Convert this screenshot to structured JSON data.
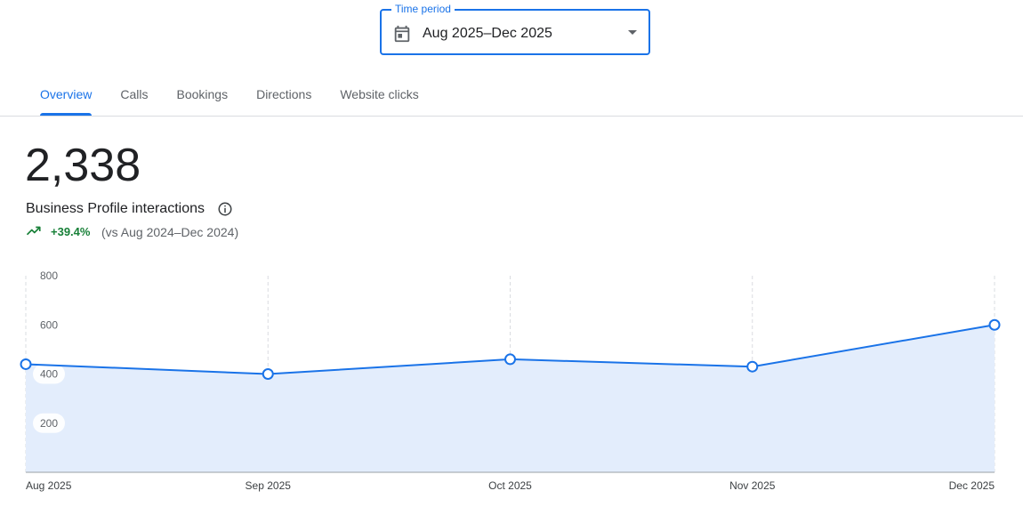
{
  "time_period": {
    "legend": "Time period",
    "value": "Aug 2025–Dec 2025",
    "icon": "calendar-icon"
  },
  "tabs": [
    {
      "label": "Overview",
      "active": true
    },
    {
      "label": "Calls",
      "active": false
    },
    {
      "label": "Bookings",
      "active": false
    },
    {
      "label": "Directions",
      "active": false
    },
    {
      "label": "Website clicks",
      "active": false
    }
  ],
  "metric": {
    "value": "2,338",
    "label": "Business Profile interactions",
    "change": "+39.4%",
    "comparison": "(vs Aug 2024–Dec 2024)",
    "change_color": "#188038"
  },
  "colors": {
    "accent": "#1a73e8",
    "area_fill": "#e3edfc",
    "grid": "#dadce0"
  },
  "chart_data": {
    "type": "area",
    "x": [
      "Aug 2025",
      "Sep 2025",
      "Oct 2025",
      "Nov 2025",
      "Dec 2025"
    ],
    "series": [
      {
        "values": [
          440,
          400,
          460,
          430,
          600
        ]
      }
    ],
    "y_ticks": [
      200,
      400,
      600,
      800
    ],
    "ylim": [
      0,
      800
    ],
    "grid": "vertical dashed"
  }
}
